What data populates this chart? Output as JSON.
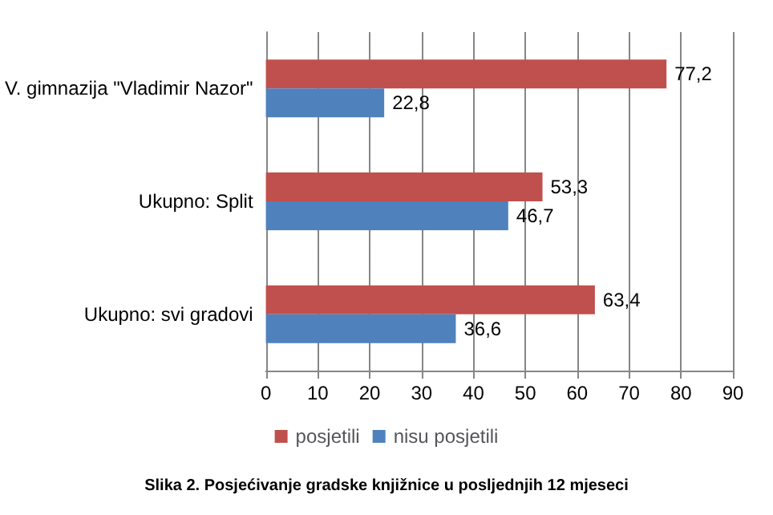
{
  "chart_data": {
    "type": "bar",
    "orientation": "horizontal",
    "categories": [
      "V. gimnazija \"Vladimir Nazor\"",
      "Ukupno: Split",
      "Ukupno: svi gradovi"
    ],
    "series": [
      {
        "name": "posjetili",
        "color": "#c0504d",
        "values": [
          77.2,
          53.3,
          63.4
        ],
        "value_labels": [
          "77,2",
          "53,3",
          "63,4"
        ]
      },
      {
        "name": "nisu posjetili",
        "color": "#4f81bd",
        "values": [
          22.8,
          46.7,
          36.6
        ],
        "value_labels": [
          "22,8",
          "46,7",
          "36,6"
        ]
      }
    ],
    "xlim": [
      0,
      90
    ],
    "xticks": [
      0,
      10,
      20,
      30,
      40,
      50,
      60,
      70,
      80,
      90
    ],
    "grid": "x",
    "legend": "bottom",
    "annotations": [
      "Slika 2. Posjećivanje gradske knjižnice u posljednjih 12 mjeseci"
    ]
  }
}
